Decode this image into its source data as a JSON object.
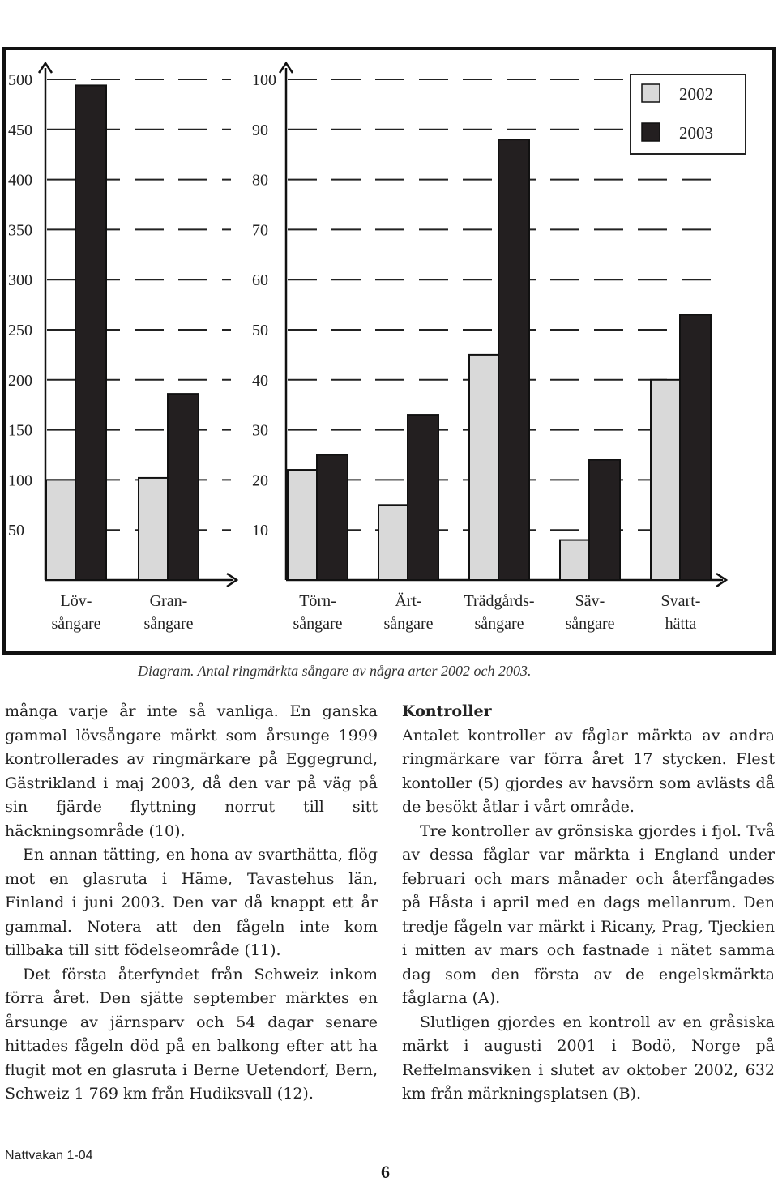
{
  "chart_data": {
    "type": "bar",
    "caption": "Diagram. Antal ringmärkta sångare av några arter 2002 och 2003.",
    "legend": [
      "2002",
      "2003"
    ],
    "legend_position": "top-right",
    "colors": {
      "2002": "#d9d9d9",
      "2003": "#231f20"
    },
    "left_axis": {
      "ticks": [
        50,
        100,
        150,
        200,
        250,
        300,
        350,
        400,
        450,
        500
      ],
      "categories": [
        "Löv-\nsångare",
        "Gran-\nsångare"
      ],
      "series": [
        {
          "name": "2002",
          "values": [
            100,
            102
          ]
        },
        {
          "name": "2003",
          "values": [
            494,
            186
          ]
        }
      ]
    },
    "right_axis": {
      "ticks": [
        10,
        20,
        30,
        40,
        50,
        60,
        70,
        80,
        90,
        100
      ],
      "categories": [
        "Törn-\nsångare",
        "Ärt-\nsångare",
        "Trädgårds-\nsångare",
        "Säv-\nsångare",
        "Svart-\nhätta"
      ],
      "series": [
        {
          "name": "2002",
          "values": [
            22,
            15,
            45,
            8,
            40
          ]
        },
        {
          "name": "2003",
          "values": [
            25,
            33,
            88,
            24,
            53
          ]
        }
      ]
    }
  },
  "caption": "Diagram. Antal ringmärkta sångare av några arter 2002 och 2003.",
  "left_column": [
    {
      "text": "många varje år inte så vanliga. En ganska gammal lövsångare märkt som årsunge 1999 kontrollerades av ringmärkare på Eggegrund, Gästrikland i maj 2003, då den var på väg på sin fjärde flyttning norrut till sitt häckningsområde (10).",
      "indent": false
    },
    {
      "text": "En annan tätting, en hona av svarthätta, flög mot en glasruta i Häme, Tavastehus län, Finland i juni 2003. Den var då knappt ett år gammal. Notera att den fågeln inte kom tillbaka till sitt födelseområde (11).",
      "indent": true
    },
    {
      "text": "Det första återfyndet från Schweiz inkom förra året. Den sjätte september märktes en årsunge av järnsparv och 54 dagar senare hittades fågeln död på en balkong efter att ha flugit mot en glasruta i Berne Uetendorf, Bern, Schweiz 1 769 km från Hudiksvall (12).",
      "indent": true
    }
  ],
  "right_heading": "Kontroller",
  "right_column": [
    {
      "text": "Antalet kontroller av fåglar märkta av andra ringmärkare var förra året 17 stycken. Flest kontoller (5) gjordes av havsörn som avlästs då de besökt åtlar i vårt område.",
      "indent": false
    },
    {
      "text": "Tre kontroller av grönsiska gjordes i fjol. Två av dessa fåglar var märkta i England under februari och mars månader och återfångades på Håsta i april med en dags mellanrum. Den tredje fågeln var märkt i Ricany, Prag, Tjeckien i mitten av mars och fastnade i nätet samma dag som den första av de engelskmärkta fåglarna (A).",
      "indent": true
    },
    {
      "text": "Slutligen gjordes en kontroll av en gråsiska märkt i augusti 2001 i Bodö, Norge på Reffelmansviken i slutet av oktober 2002, 632 km från märkningsplatsen (B).",
      "indent": true
    }
  ],
  "footer": {
    "publication": "Nattvakan 1-04",
    "page": "6"
  }
}
